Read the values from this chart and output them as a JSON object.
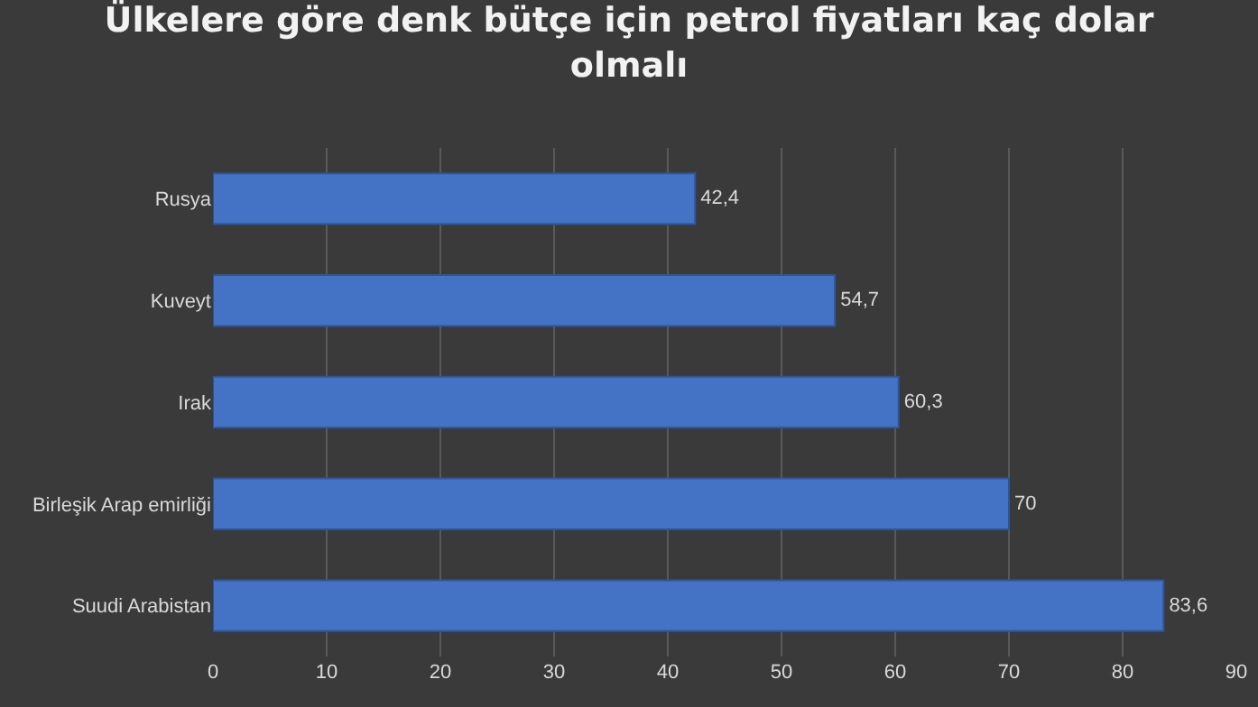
{
  "chart_data": {
    "type": "bar",
    "orientation": "horizontal",
    "title": "Ülkelere göre denk bütçe için petrol fiyatları kaç dolar olmalı",
    "categories": [
      "Rusya",
      "Kuveyt",
      "Irak",
      "Birleşik Arap emirliği",
      "Suudi Arabistan"
    ],
    "values": [
      42.4,
      54.7,
      60.3,
      70,
      83.6
    ],
    "value_labels": [
      "42,4",
      "54,7",
      "60,3",
      "70",
      "83,6"
    ],
    "color": "#4472c4",
    "xlim": [
      0,
      90
    ],
    "xticks": [
      0,
      10,
      20,
      30,
      40,
      50,
      60,
      70,
      80,
      90
    ],
    "grid": "x",
    "legend": false
  }
}
